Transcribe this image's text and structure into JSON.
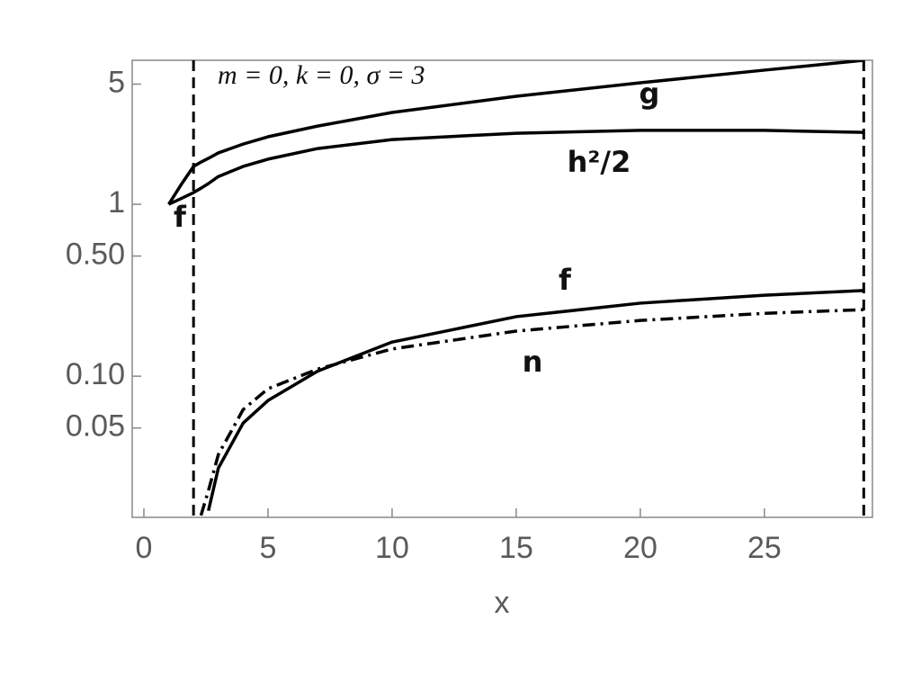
{
  "chart_data": {
    "type": "line",
    "xlabel": "x",
    "annotations": [
      "m = 0, k = 0, σ = 3",
      "g",
      "h²/2",
      "f",
      "f",
      "n"
    ],
    "x": [
      1,
      1.5,
      2,
      2.3,
      2.6,
      3,
      4,
      5,
      7,
      10,
      15,
      20,
      25,
      29
    ],
    "series": [
      {
        "name": "g",
        "color": "#000000",
        "dash": "solid",
        "values": [
          1,
          1.3,
          1.66,
          1.76,
          1.85,
          1.99,
          2.24,
          2.47,
          2.85,
          3.42,
          4.25,
          5.09,
          6.03,
          6.88
        ]
      },
      {
        "name": "h²/2",
        "color": "#000000",
        "dash": "solid",
        "values": [
          1,
          1.08,
          1.17,
          1.24,
          1.32,
          1.45,
          1.66,
          1.83,
          2.11,
          2.38,
          2.59,
          2.69,
          2.69,
          2.62
        ]
      },
      {
        "name": "f",
        "color": "#000000",
        "dash": "solid",
        "values": [
          null,
          null,
          null,
          null,
          0.0165,
          0.0292,
          0.0534,
          0.0722,
          0.107,
          0.158,
          0.222,
          0.266,
          0.296,
          0.315
        ]
      },
      {
        "name": "n",
        "color": "#000000",
        "dash": "dashdot",
        "values": [
          null,
          null,
          null,
          0.0155,
          0.0216,
          0.035,
          0.064,
          0.0845,
          0.11,
          0.144,
          0.183,
          0.211,
          0.232,
          0.244
        ]
      }
    ],
    "vlines": [
      2,
      29
    ],
    "xlim": [
      -0.47,
      29.35
    ],
    "xticks": [
      0,
      5,
      10,
      15,
      20,
      25
    ],
    "ylim": [
      0.0151,
      6.88
    ],
    "ylog": true,
    "yticks": [
      5,
      1,
      {
        "value": 0.5,
        "label": "0.50"
      },
      {
        "value": 0.1,
        "label": "0.10"
      },
      0.05
    ],
    "grid": false
  }
}
